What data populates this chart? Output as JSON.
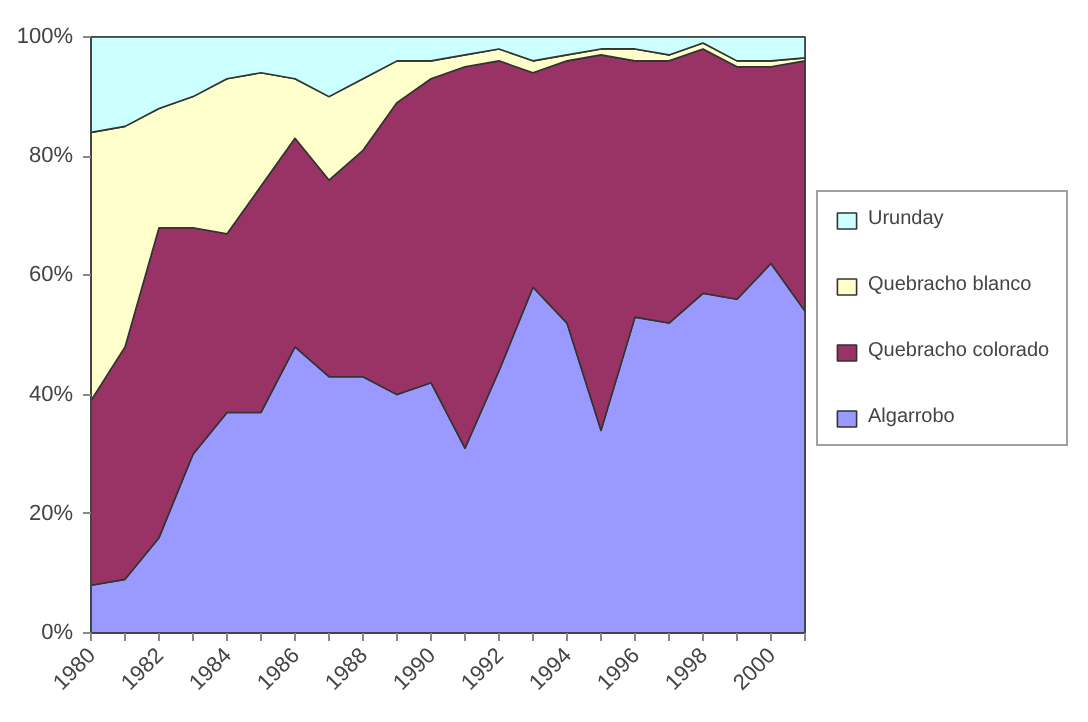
{
  "chart_data": {
    "type": "area",
    "stacked": true,
    "x": [
      1980,
      1981,
      1982,
      1983,
      1984,
      1985,
      1986,
      1987,
      1988,
      1989,
      1990,
      1991,
      1992,
      1993,
      1994,
      1995,
      1996,
      1997,
      1998,
      1999,
      2000,
      2001
    ],
    "series": [
      {
        "name": "Algarrobo",
        "color": "#9999ff",
        "values": [
          8,
          9,
          16,
          30,
          37,
          37,
          48,
          43,
          43,
          40,
          42,
          31,
          44,
          58,
          52,
          34,
          53,
          52,
          57,
          56,
          62,
          54
        ]
      },
      {
        "name": "Quebracho colorado",
        "color": "#993366",
        "values": [
          31,
          39,
          52,
          38,
          30,
          38,
          35,
          33,
          38,
          49,
          51,
          64,
          52,
          36,
          44,
          63,
          43,
          44,
          41,
          39,
          33,
          42
        ]
      },
      {
        "name": "Quebracho blanco",
        "color": "#ffffcc",
        "values": [
          45,
          37,
          20,
          22,
          26,
          19,
          10,
          14,
          12,
          7,
          3,
          2,
          2,
          2,
          1,
          1,
          2,
          1,
          1,
          1,
          1,
          0.5
        ]
      },
      {
        "name": "Urunday",
        "color": "#ccffff",
        "values": [
          16,
          15,
          12,
          10,
          7,
          6,
          7,
          10,
          7,
          4,
          4,
          3,
          2,
          4,
          3,
          2,
          2,
          3,
          1,
          4,
          4,
          3.5
        ]
      }
    ],
    "xlim": [
      1980,
      2001
    ],
    "xticks": [
      1980,
      {
        "value": 1981,
        "label": null
      },
      1982,
      {
        "value": 1983,
        "label": null
      },
      1984,
      {
        "value": 1985,
        "label": null
      },
      1986,
      {
        "value": 1987,
        "label": null
      },
      1988,
      {
        "value": 1989,
        "label": null
      },
      1990,
      {
        "value": 1991,
        "label": null
      },
      1992,
      {
        "value": 1993,
        "label": null
      },
      1994,
      {
        "value": 1995,
        "label": null
      },
      1996,
      {
        "value": 1997,
        "label": null
      },
      1998,
      {
        "value": 1999,
        "label": null
      },
      2000,
      {
        "value": 2001,
        "label": null
      }
    ],
    "ylim": [
      0,
      100
    ],
    "yticks": [
      {
        "value": 0,
        "label": "0%"
      },
      {
        "value": 20,
        "label": "20%"
      },
      {
        "value": 40,
        "label": "40%"
      },
      {
        "value": 60,
        "label": "60%"
      },
      {
        "value": 80,
        "label": "80%"
      },
      {
        "value": 100,
        "label": "100%"
      }
    ],
    "legend": "right"
  }
}
